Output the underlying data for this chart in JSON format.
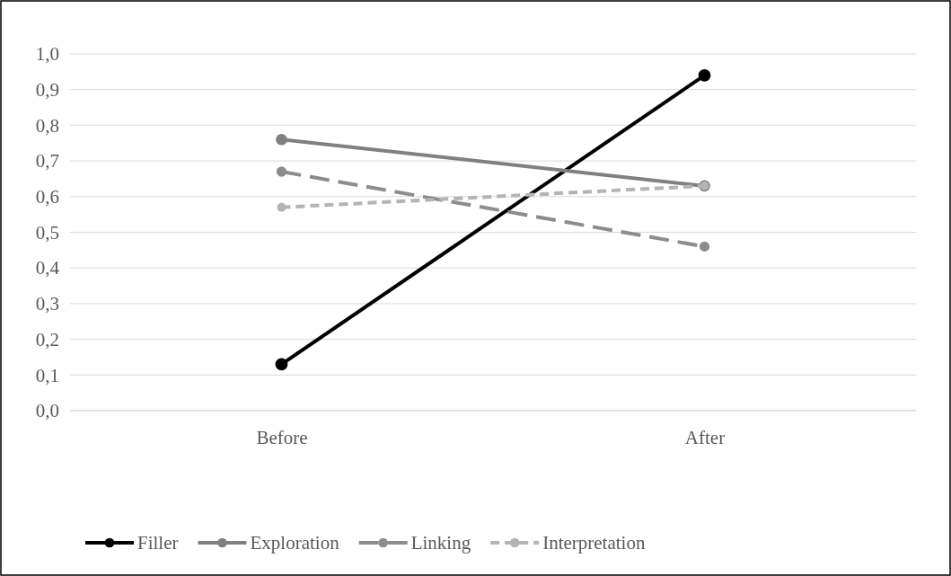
{
  "chart_data": {
    "type": "line",
    "categories": [
      "Before",
      "After"
    ],
    "series": [
      {
        "name": "Filler",
        "color": "#000000",
        "values": [
          0.13,
          0.94
        ],
        "line_style": "solid"
      },
      {
        "name": "Exploration",
        "color": "#808080",
        "values": [
          0.76,
          0.63
        ],
        "line_style": "solid"
      },
      {
        "name": "Linking",
        "color": "#8c8c8c",
        "values": [
          0.67,
          0.46
        ],
        "line_style": "dashed"
      },
      {
        "name": "Interpretation",
        "color": "#b4b4b4",
        "values": [
          0.57,
          0.63
        ],
        "line_style": "dotted"
      }
    ],
    "ylim": [
      0,
      1
    ],
    "yticks": [
      {
        "value": 0,
        "label": "0,0"
      },
      {
        "value": 0.1,
        "label": "0,1"
      },
      {
        "value": 0.2,
        "label": "0,2"
      },
      {
        "value": 0.3,
        "label": "0,3"
      },
      {
        "value": 0.4,
        "label": "0,4"
      },
      {
        "value": 0.5,
        "label": "0,5"
      },
      {
        "value": 0.6,
        "label": "0,6"
      },
      {
        "value": 0.7,
        "label": "0,7"
      },
      {
        "value": 0.8,
        "label": "0,8"
      },
      {
        "value": 0.9,
        "label": "0,9"
      },
      {
        "value": 1,
        "label": "1,0"
      }
    ],
    "grid": "y",
    "legend": "bottom",
    "marker": "circle"
  }
}
